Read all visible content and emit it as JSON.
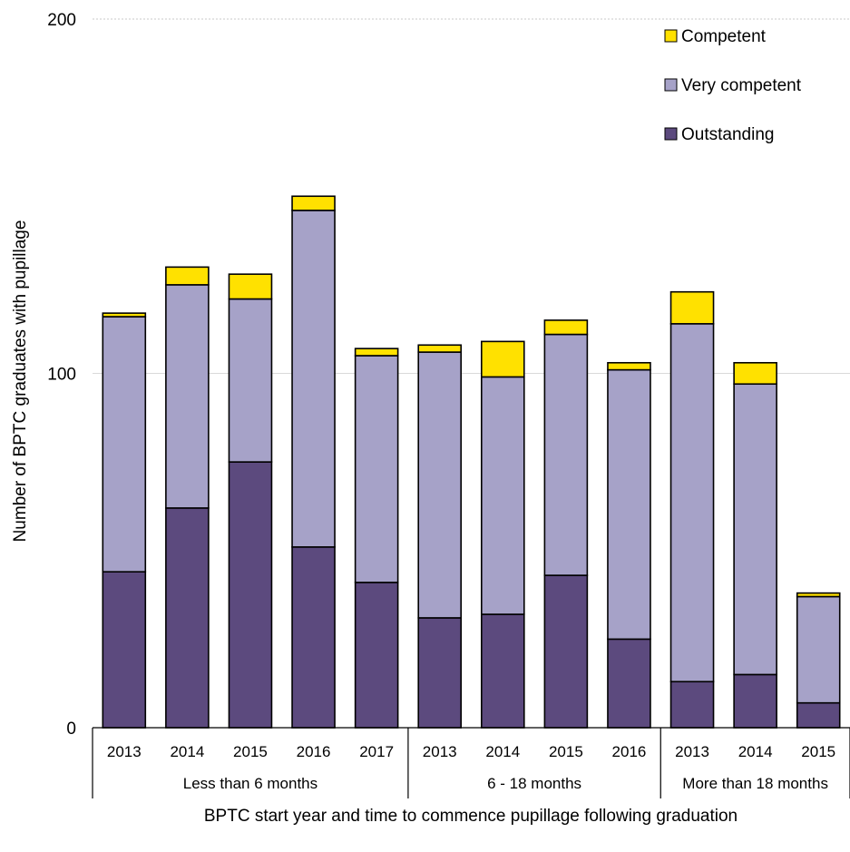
{
  "chart_data": {
    "type": "bar",
    "stacked": true,
    "xlabel": "BPTC start year and time to commence pupillage following graduation",
    "ylabel": "Number of BPTC graduates with pupillage",
    "ylim": [
      0,
      200
    ],
    "yticks": [
      0,
      100,
      200
    ],
    "grid": true,
    "legend_position": "top-right",
    "groups": [
      {
        "label": "Less than 6 months",
        "count": 5
      },
      {
        "label": "6 - 18 months",
        "count": 4
      },
      {
        "label": "More than 18 months",
        "count": 3
      }
    ],
    "categories": [
      "2013",
      "2014",
      "2015",
      "2016",
      "2017",
      "2013",
      "2014",
      "2015",
      "2016",
      "2013",
      "2014",
      "2015"
    ],
    "series": [
      {
        "name": "Outstanding",
        "color": "#5c4a7e",
        "values": [
          44,
          62,
          75,
          51,
          41,
          31,
          32,
          43,
          25,
          13,
          15,
          7
        ]
      },
      {
        "name": "Very competent",
        "color": "#a6a2c8",
        "values": [
          72,
          63,
          46,
          95,
          64,
          75,
          67,
          68,
          76,
          101,
          82,
          30
        ]
      },
      {
        "name": "Competent",
        "color": "#ffe100",
        "values": [
          1,
          5,
          7,
          4,
          2,
          2,
          10,
          4,
          2,
          9,
          6,
          1
        ]
      }
    ],
    "legend_order": [
      "Competent",
      "Very competent",
      "Outstanding"
    ]
  }
}
